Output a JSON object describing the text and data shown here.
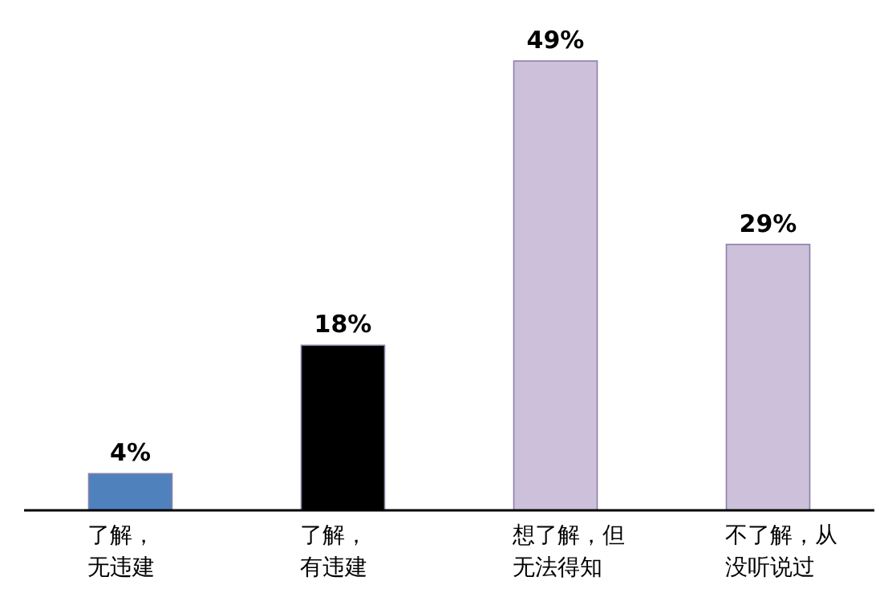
{
  "chart_data": {
    "type": "bar",
    "categories": [
      "了解，无违建",
      "了解，有违建",
      "想了解，但无法得知",
      "不了解，从没听说过"
    ],
    "values": [
      4,
      18,
      49,
      29
    ],
    "colors": [
      "#4f81bd",
      "#000000",
      "#ccc0da",
      "#ccc0da"
    ],
    "value_labels": [
      "4%",
      "18%",
      "49%",
      "29%"
    ]
  }
}
